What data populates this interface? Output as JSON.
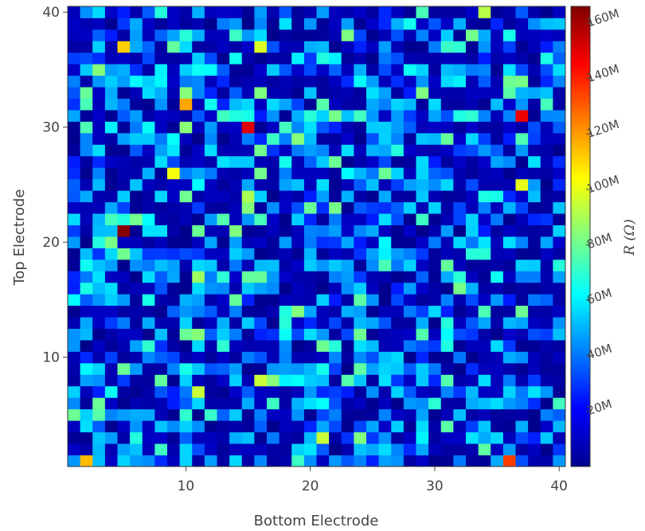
{
  "chart_data": {
    "type": "heatmap",
    "title": "",
    "xlabel": "Bottom Electrode",
    "ylabel": "Top Electrode",
    "x_range": [
      1,
      40
    ],
    "y_range": [
      1,
      40
    ],
    "x_ticks": [
      10,
      20,
      30,
      40
    ],
    "y_ticks": [
      10,
      20,
      30,
      40
    ],
    "colorbar": {
      "title": "R (Ω)",
      "min": 0,
      "max": 166,
      "unit_suffix": "M",
      "ticks": [
        20,
        40,
        60,
        80,
        100,
        120,
        140,
        160
      ],
      "tick_labels": [
        "20M",
        "40M",
        "60M",
        "80M",
        "100M",
        "120M",
        "140M",
        "160M"
      ],
      "colormap": "jet"
    },
    "grid": false,
    "legend": "colorbar-right",
    "notable_cells": [
      {
        "x": 5,
        "y": 21,
        "value": 165
      },
      {
        "x": 15,
        "y": 30,
        "value": 150
      },
      {
        "x": 37,
        "y": 31,
        "value": 148
      },
      {
        "x": 10,
        "y": 32,
        "value": 118
      },
      {
        "x": 5,
        "y": 37,
        "value": 112
      },
      {
        "x": 2,
        "y": 1,
        "value": 115
      },
      {
        "x": 36,
        "y": 1,
        "value": 135
      },
      {
        "x": 9,
        "y": 26,
        "value": 102
      },
      {
        "x": 37,
        "y": 25,
        "value": 100
      },
      {
        "x": 16,
        "y": 37,
        "value": 98
      },
      {
        "x": 16,
        "y": 8,
        "value": 95
      },
      {
        "x": 34,
        "y": 40,
        "value": 92
      },
      {
        "x": 21,
        "y": 3,
        "value": 95
      },
      {
        "x": 11,
        "y": 7,
        "value": 95
      },
      {
        "x": 11,
        "y": 17,
        "value": 88
      },
      {
        "x": 15,
        "y": 24,
        "value": 90
      }
    ],
    "note": "40x40 grid of resistances; the majority of cells are near 0 (dark blue) or 40-60M (cyan); sparse outliers listed above."
  }
}
